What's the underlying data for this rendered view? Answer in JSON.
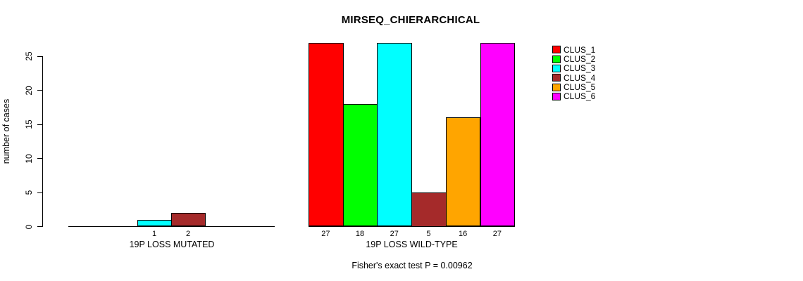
{
  "chart_data": {
    "type": "bar",
    "title": "MIRSEQ_CHIERARCHICAL",
    "ylabel": "number of cases",
    "yticks": [
      0,
      5,
      10,
      15,
      20,
      25
    ],
    "ylim": [
      0,
      25
    ],
    "grid": false,
    "legend_position": "right",
    "series": [
      {
        "name": "CLUS_1",
        "color": "#FF0000"
      },
      {
        "name": "CLUS_2",
        "color": "#00FF00"
      },
      {
        "name": "CLUS_3",
        "color": "#00FFFF"
      },
      {
        "name": "CLUS_4",
        "color": "#A52A2A"
      },
      {
        "name": "CLUS_5",
        "color": "#FFA500"
      },
      {
        "name": "CLUS_6",
        "color": "#FF00FF"
      }
    ],
    "groups": [
      {
        "label": "19P LOSS MUTATED",
        "values": [
          0,
          0,
          1,
          2,
          0,
          0
        ]
      },
      {
        "label": "19P LOSS WILD-TYPE",
        "values": [
          27,
          18,
          27,
          5,
          16,
          27
        ]
      }
    ],
    "bar_value_labels": "values shown under non-zero bars",
    "footnote": "Fisher's exact test P = 0.00962"
  }
}
